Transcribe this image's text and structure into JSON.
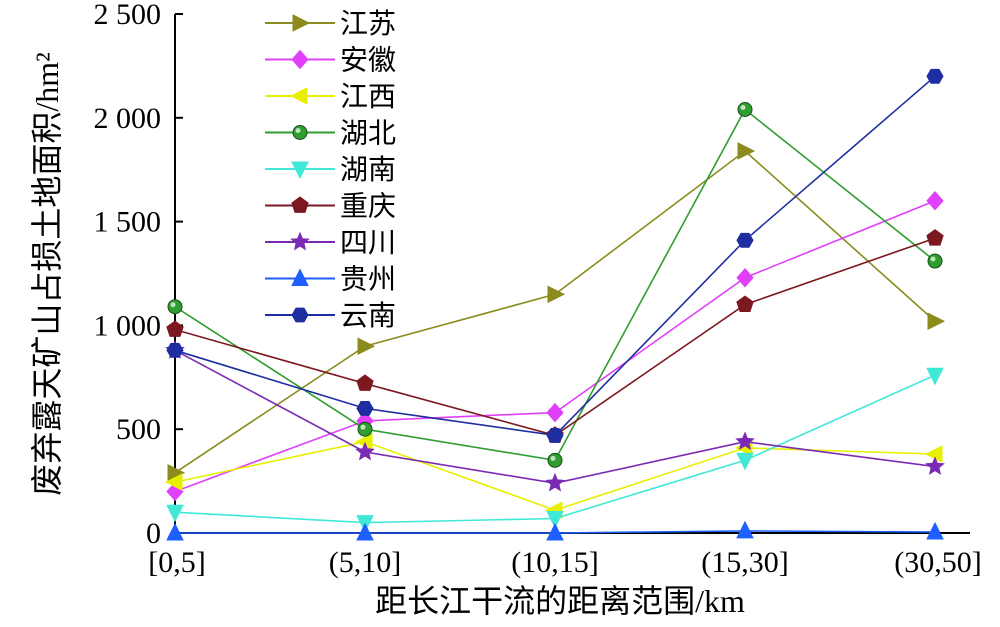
{
  "chart_data": {
    "type": "line",
    "xlabel": "距长江干流的距离范围/km",
    "ylabel": "废弃露天矿山占损土地面积/hm²",
    "categories": [
      "[0,5]",
      "(5,10]",
      "(10,15]",
      "(15,30]",
      "(30,50]"
    ],
    "ylim": [
      0,
      2500
    ],
    "yticks": [
      0,
      500,
      1000,
      1500,
      2000,
      2500
    ],
    "ytick_labels": [
      "0",
      "500",
      "1 000",
      "1 500",
      "2 000",
      "2 500"
    ],
    "legend_position": "top-left",
    "grid": false,
    "series": [
      {
        "name": "江苏",
        "color": "#8b8b1e",
        "marker": "triangle-right",
        "values": [
          290,
          900,
          1150,
          1840,
          1020
        ]
      },
      {
        "name": "安徽",
        "color": "#e040fb",
        "marker": "diamond",
        "values": [
          200,
          540,
          580,
          1230,
          1600
        ]
      },
      {
        "name": "江西",
        "color": "#e8f000",
        "marker": "triangle-left",
        "values": [
          245,
          440,
          110,
          410,
          380
        ]
      },
      {
        "name": "湖北",
        "color": "#2e9e2e",
        "marker": "circle",
        "values": [
          1090,
          500,
          350,
          2040,
          1310
        ]
      },
      {
        "name": "湖南",
        "color": "#40e8d8",
        "marker": "triangle-down",
        "values": [
          100,
          50,
          70,
          350,
          760
        ]
      },
      {
        "name": "重庆",
        "color": "#7b1820",
        "marker": "pentagon",
        "values": [
          980,
          720,
          470,
          1100,
          1420
        ]
      },
      {
        "name": "四川",
        "color": "#7b2bb3",
        "marker": "star",
        "values": [
          880,
          390,
          240,
          440,
          320
        ]
      },
      {
        "name": "贵州",
        "color": "#1e5fff",
        "marker": "triangle-up",
        "values": [
          0,
          0,
          0,
          10,
          5
        ]
      },
      {
        "name": "云南",
        "color": "#1e2ea0",
        "marker": "hexagon",
        "values": [
          880,
          600,
          470,
          1410,
          2200
        ]
      }
    ]
  }
}
